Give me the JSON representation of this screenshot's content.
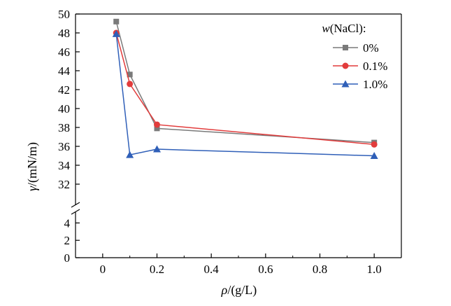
{
  "chart_data": {
    "type": "line",
    "xlabel_italic": "ρ",
    "xlabel_rest": "/(g/L)",
    "ylabel_italic": "γ",
    "ylabel_rest": "/(mN/m)",
    "xlim": [
      -0.1,
      1.1
    ],
    "y_upper_range": [
      30,
      50
    ],
    "y_lower_range": [
      0,
      5
    ],
    "y_axis_break": true,
    "x_ticks": [
      0,
      0.2,
      0.4,
      0.6,
      0.8,
      1.0
    ],
    "x_tick_labels": [
      "0",
      "0.2",
      "0.4",
      "0.6",
      "0.8",
      "1.0"
    ],
    "y_upper_ticks": [
      32,
      34,
      36,
      38,
      40,
      42,
      44,
      46,
      48,
      50
    ],
    "y_upper_tick_labels": [
      "32",
      "34",
      "36",
      "38",
      "40",
      "42",
      "44",
      "46",
      "48",
      "50"
    ],
    "y_lower_ticks": [
      0,
      2,
      4
    ],
    "y_lower_tick_labels": [
      "0",
      "2",
      "4"
    ],
    "grid": false,
    "legend": {
      "title_italic": "w",
      "title_rest": "(NaCl):",
      "placement": "top-right"
    },
    "series": [
      {
        "name": "0%",
        "color": "#7a7a7a",
        "marker": "square",
        "x": [
          0.05,
          0.1,
          0.2,
          1.0
        ],
        "y": [
          49.2,
          43.6,
          37.9,
          36.4
        ]
      },
      {
        "name": "0.1%",
        "color": "#e23c3c",
        "marker": "circle",
        "x": [
          0.05,
          0.1,
          0.2,
          1.0
        ],
        "y": [
          48.0,
          42.6,
          38.3,
          36.2
        ]
      },
      {
        "name": "1.0%",
        "color": "#2f5fb8",
        "marker": "triangle",
        "x": [
          0.05,
          0.1,
          0.2,
          1.0
        ],
        "y": [
          47.9,
          35.1,
          35.7,
          35.0
        ]
      }
    ]
  }
}
